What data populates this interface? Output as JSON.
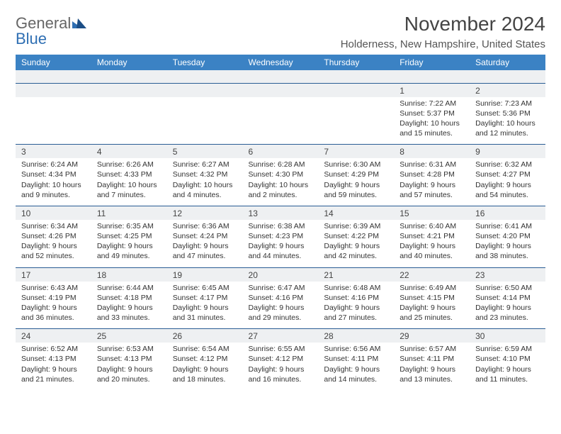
{
  "logo": {
    "word1": "General",
    "word2": "Blue"
  },
  "colors": {
    "header_bg": "#3b82c4",
    "header_text": "#ffffff",
    "row_bg": "#eef0f2",
    "rule": "#2a5d94",
    "logo_gray": "#666666",
    "logo_blue": "#2f6fb3"
  },
  "title": "November 2024",
  "location": "Holderness, New Hampshire, United States",
  "weekdays": [
    "Sunday",
    "Monday",
    "Tuesday",
    "Wednesday",
    "Thursday",
    "Friday",
    "Saturday"
  ],
  "weeks": [
    {
      "dates": [
        "",
        "",
        "",
        "",
        "",
        "1",
        "2"
      ],
      "cells": [
        null,
        null,
        null,
        null,
        null,
        {
          "sunrise": "Sunrise: 7:22 AM",
          "sunset": "Sunset: 5:37 PM",
          "d1": "Daylight: 10 hours",
          "d2": "and 15 minutes."
        },
        {
          "sunrise": "Sunrise: 7:23 AM",
          "sunset": "Sunset: 5:36 PM",
          "d1": "Daylight: 10 hours",
          "d2": "and 12 minutes."
        }
      ]
    },
    {
      "dates": [
        "3",
        "4",
        "5",
        "6",
        "7",
        "8",
        "9"
      ],
      "cells": [
        {
          "sunrise": "Sunrise: 6:24 AM",
          "sunset": "Sunset: 4:34 PM",
          "d1": "Daylight: 10 hours",
          "d2": "and 9 minutes."
        },
        {
          "sunrise": "Sunrise: 6:26 AM",
          "sunset": "Sunset: 4:33 PM",
          "d1": "Daylight: 10 hours",
          "d2": "and 7 minutes."
        },
        {
          "sunrise": "Sunrise: 6:27 AM",
          "sunset": "Sunset: 4:32 PM",
          "d1": "Daylight: 10 hours",
          "d2": "and 4 minutes."
        },
        {
          "sunrise": "Sunrise: 6:28 AM",
          "sunset": "Sunset: 4:30 PM",
          "d1": "Daylight: 10 hours",
          "d2": "and 2 minutes."
        },
        {
          "sunrise": "Sunrise: 6:30 AM",
          "sunset": "Sunset: 4:29 PM",
          "d1": "Daylight: 9 hours",
          "d2": "and 59 minutes."
        },
        {
          "sunrise": "Sunrise: 6:31 AM",
          "sunset": "Sunset: 4:28 PM",
          "d1": "Daylight: 9 hours",
          "d2": "and 57 minutes."
        },
        {
          "sunrise": "Sunrise: 6:32 AM",
          "sunset": "Sunset: 4:27 PM",
          "d1": "Daylight: 9 hours",
          "d2": "and 54 minutes."
        }
      ]
    },
    {
      "dates": [
        "10",
        "11",
        "12",
        "13",
        "14",
        "15",
        "16"
      ],
      "cells": [
        {
          "sunrise": "Sunrise: 6:34 AM",
          "sunset": "Sunset: 4:26 PM",
          "d1": "Daylight: 9 hours",
          "d2": "and 52 minutes."
        },
        {
          "sunrise": "Sunrise: 6:35 AM",
          "sunset": "Sunset: 4:25 PM",
          "d1": "Daylight: 9 hours",
          "d2": "and 49 minutes."
        },
        {
          "sunrise": "Sunrise: 6:36 AM",
          "sunset": "Sunset: 4:24 PM",
          "d1": "Daylight: 9 hours",
          "d2": "and 47 minutes."
        },
        {
          "sunrise": "Sunrise: 6:38 AM",
          "sunset": "Sunset: 4:23 PM",
          "d1": "Daylight: 9 hours",
          "d2": "and 44 minutes."
        },
        {
          "sunrise": "Sunrise: 6:39 AM",
          "sunset": "Sunset: 4:22 PM",
          "d1": "Daylight: 9 hours",
          "d2": "and 42 minutes."
        },
        {
          "sunrise": "Sunrise: 6:40 AM",
          "sunset": "Sunset: 4:21 PM",
          "d1": "Daylight: 9 hours",
          "d2": "and 40 minutes."
        },
        {
          "sunrise": "Sunrise: 6:41 AM",
          "sunset": "Sunset: 4:20 PM",
          "d1": "Daylight: 9 hours",
          "d2": "and 38 minutes."
        }
      ]
    },
    {
      "dates": [
        "17",
        "18",
        "19",
        "20",
        "21",
        "22",
        "23"
      ],
      "cells": [
        {
          "sunrise": "Sunrise: 6:43 AM",
          "sunset": "Sunset: 4:19 PM",
          "d1": "Daylight: 9 hours",
          "d2": "and 36 minutes."
        },
        {
          "sunrise": "Sunrise: 6:44 AM",
          "sunset": "Sunset: 4:18 PM",
          "d1": "Daylight: 9 hours",
          "d2": "and 33 minutes."
        },
        {
          "sunrise": "Sunrise: 6:45 AM",
          "sunset": "Sunset: 4:17 PM",
          "d1": "Daylight: 9 hours",
          "d2": "and 31 minutes."
        },
        {
          "sunrise": "Sunrise: 6:47 AM",
          "sunset": "Sunset: 4:16 PM",
          "d1": "Daylight: 9 hours",
          "d2": "and 29 minutes."
        },
        {
          "sunrise": "Sunrise: 6:48 AM",
          "sunset": "Sunset: 4:16 PM",
          "d1": "Daylight: 9 hours",
          "d2": "and 27 minutes."
        },
        {
          "sunrise": "Sunrise: 6:49 AM",
          "sunset": "Sunset: 4:15 PM",
          "d1": "Daylight: 9 hours",
          "d2": "and 25 minutes."
        },
        {
          "sunrise": "Sunrise: 6:50 AM",
          "sunset": "Sunset: 4:14 PM",
          "d1": "Daylight: 9 hours",
          "d2": "and 23 minutes."
        }
      ]
    },
    {
      "dates": [
        "24",
        "25",
        "26",
        "27",
        "28",
        "29",
        "30"
      ],
      "cells": [
        {
          "sunrise": "Sunrise: 6:52 AM",
          "sunset": "Sunset: 4:13 PM",
          "d1": "Daylight: 9 hours",
          "d2": "and 21 minutes."
        },
        {
          "sunrise": "Sunrise: 6:53 AM",
          "sunset": "Sunset: 4:13 PM",
          "d1": "Daylight: 9 hours",
          "d2": "and 20 minutes."
        },
        {
          "sunrise": "Sunrise: 6:54 AM",
          "sunset": "Sunset: 4:12 PM",
          "d1": "Daylight: 9 hours",
          "d2": "and 18 minutes."
        },
        {
          "sunrise": "Sunrise: 6:55 AM",
          "sunset": "Sunset: 4:12 PM",
          "d1": "Daylight: 9 hours",
          "d2": "and 16 minutes."
        },
        {
          "sunrise": "Sunrise: 6:56 AM",
          "sunset": "Sunset: 4:11 PM",
          "d1": "Daylight: 9 hours",
          "d2": "and 14 minutes."
        },
        {
          "sunrise": "Sunrise: 6:57 AM",
          "sunset": "Sunset: 4:11 PM",
          "d1": "Daylight: 9 hours",
          "d2": "and 13 minutes."
        },
        {
          "sunrise": "Sunrise: 6:59 AM",
          "sunset": "Sunset: 4:10 PM",
          "d1": "Daylight: 9 hours",
          "d2": "and 11 minutes."
        }
      ]
    }
  ]
}
